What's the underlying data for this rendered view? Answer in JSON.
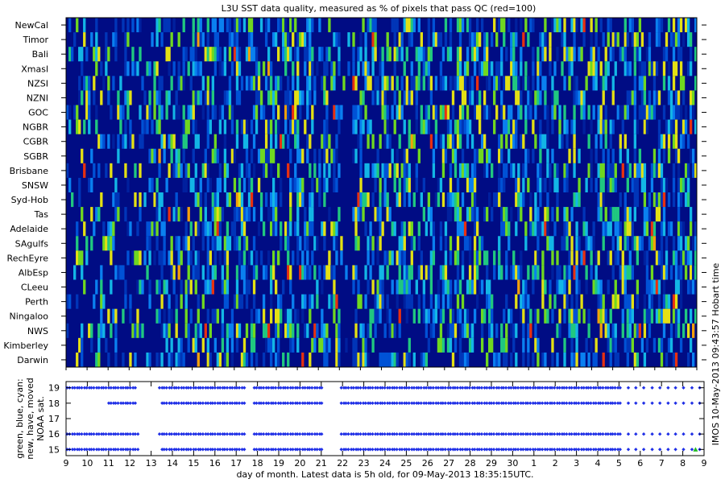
{
  "chart_data": [
    {
      "type": "heatmap",
      "title": "L3U SST data quality, measured as % of pixels that pass QC (red=100)",
      "y_categories": [
        "NewCal",
        "Timor",
        "Bali",
        "Xmasl",
        "NZSI",
        "NZNI",
        "GOC",
        "NGBR",
        "CGBR",
        "SGBR",
        "Brisbane",
        "SNSW",
        "Syd-Hob",
        "Tas",
        "Adelaide",
        "SAgulfs",
        "RechEyre",
        "AlbEsp",
        "CLeeu",
        "Perth",
        "Ningaloo",
        "NWS",
        "Kimberley",
        "Darwin"
      ],
      "x_tick_labels": [
        "9",
        "10",
        "11",
        "12",
        "13",
        "14",
        "15",
        "16",
        "17",
        "18",
        "19",
        "20",
        "21",
        "22",
        "23",
        "24",
        "25",
        "26",
        "27",
        "28",
        "29",
        "30",
        "1",
        "2",
        "3",
        "4",
        "5",
        "6",
        "7",
        "8",
        "9"
      ],
      "xlabel": "day of month. Latest data is 5h old, for 09-May-2013 18:35:15UTC.",
      "right_label": "IMOS 10-May-2013 09:43:57 Hobart time",
      "color_scale": "percent of pixels passing QC, 0 (dark blue) to 100 (red)"
    },
    {
      "type": "scatter",
      "ylabel": "green, blue, cyan: new, have, moved NOAA sat.",
      "y_ticks": [
        "15",
        "16",
        "17",
        "18",
        "19"
      ],
      "x_tick_labels": [
        "9",
        "10",
        "11",
        "12",
        "13",
        "14",
        "15",
        "16",
        "17",
        "18",
        "19",
        "20",
        "21",
        "22",
        "23",
        "24",
        "25",
        "26",
        "27",
        "28",
        "29",
        "30",
        "1",
        "2",
        "3",
        "4",
        "5",
        "6",
        "7",
        "8",
        "9"
      ],
      "x_range": [
        "9 Apr 2013",
        "9 May 2013"
      ],
      "series": [
        {
          "satellite": 19,
          "marker_color": "#1f2fe6"
        },
        {
          "satellite": 18,
          "marker_color": "#1f2fe6"
        },
        {
          "satellite": 16,
          "marker_color": "#1f2fe6"
        },
        {
          "satellite": 15,
          "marker_color": "#1f2fe6"
        }
      ],
      "new_points": [
        {
          "satellite": 15,
          "day": "8 May",
          "marker_color": "#22bb22"
        }
      ]
    }
  ]
}
